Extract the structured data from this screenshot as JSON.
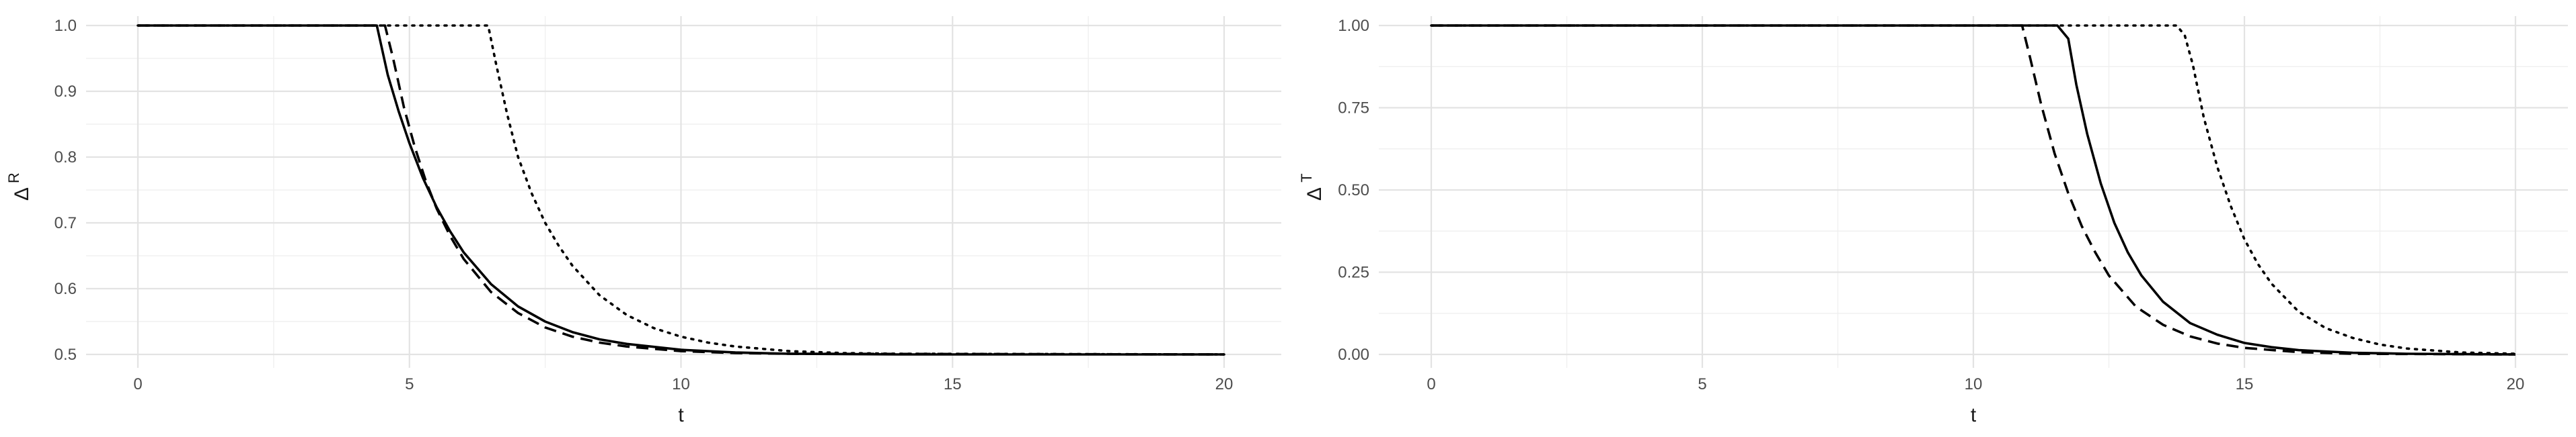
{
  "chart_data": [
    {
      "type": "line",
      "xlabel": "t",
      "ylabel": "Δ",
      "ylabel_sup": "R",
      "xlim": [
        0,
        20
      ],
      "ylim": [
        0.5,
        1.0
      ],
      "xticks": [
        "0",
        "5",
        "10",
        "15",
        "20"
      ],
      "yticks": [
        "0.5",
        "0.6",
        "0.7",
        "0.8",
        "0.9",
        "1.0"
      ],
      "grid": true,
      "series": [
        {
          "style": "solid",
          "x": [
            0,
            4.4,
            4.6,
            4.8,
            5.0,
            5.25,
            5.5,
            5.75,
            6.0,
            6.5,
            7.0,
            7.5,
            8.0,
            8.5,
            9.0,
            10.0,
            11.0,
            12.0,
            14.0,
            20.0
          ],
          "y": [
            1.0,
            1.0,
            0.925,
            0.87,
            0.821,
            0.768,
            0.724,
            0.687,
            0.655,
            0.607,
            0.573,
            0.55,
            0.534,
            0.523,
            0.516,
            0.507,
            0.503,
            0.501,
            0.5,
            0.5
          ]
        },
        {
          "style": "dashed",
          "x": [
            0,
            4.55,
            4.7,
            4.9,
            5.1,
            5.3,
            5.5,
            5.75,
            6.0,
            6.5,
            7.0,
            7.5,
            8.0,
            8.5,
            9.0,
            10.0,
            11.0,
            12.0,
            20.0
          ],
          "y": [
            1.0,
            1.0,
            0.95,
            0.875,
            0.815,
            0.764,
            0.722,
            0.68,
            0.645,
            0.595,
            0.563,
            0.541,
            0.527,
            0.518,
            0.512,
            0.505,
            0.502,
            0.501,
            0.5
          ]
        },
        {
          "style": "dotted",
          "x": [
            0,
            6.45,
            6.6,
            6.8,
            7.0,
            7.25,
            7.5,
            7.75,
            8.0,
            8.5,
            9.0,
            9.5,
            10.0,
            10.5,
            11.0,
            12.0,
            13.0,
            14.0,
            20.0
          ],
          "y": [
            1.0,
            1.0,
            0.94,
            0.865,
            0.8,
            0.745,
            0.7,
            0.665,
            0.635,
            0.59,
            0.56,
            0.54,
            0.527,
            0.518,
            0.512,
            0.505,
            0.502,
            0.501,
            0.5
          ]
        }
      ]
    },
    {
      "type": "line",
      "xlabel": "t",
      "ylabel": "Δ",
      "ylabel_sup": "T",
      "xlim": [
        0,
        20
      ],
      "ylim": [
        0.0,
        1.0
      ],
      "xticks": [
        "0",
        "5",
        "10",
        "15",
        "20"
      ],
      "yticks": [
        "0.00",
        "0.25",
        "0.50",
        "0.75",
        "1.00"
      ],
      "grid": true,
      "series": [
        {
          "style": "solid",
          "x": [
            0,
            11.55,
            11.75,
            11.9,
            12.1,
            12.35,
            12.6,
            12.85,
            13.1,
            13.5,
            14.0,
            14.5,
            15.0,
            15.5,
            16.0,
            17.0,
            18.0,
            20.0
          ],
          "y": [
            1.0,
            1.0,
            0.96,
            0.82,
            0.67,
            0.52,
            0.4,
            0.31,
            0.24,
            0.16,
            0.095,
            0.06,
            0.035,
            0.022,
            0.013,
            0.005,
            0.002,
            0.0
          ]
        },
        {
          "style": "dashed",
          "x": [
            0,
            10.9,
            11.05,
            11.25,
            11.5,
            11.75,
            12.0,
            12.25,
            12.5,
            13.0,
            13.5,
            14.0,
            14.5,
            15.0,
            16.0,
            17.0,
            20.0
          ],
          "y": [
            1.0,
            1.0,
            0.9,
            0.76,
            0.61,
            0.49,
            0.39,
            0.31,
            0.24,
            0.145,
            0.09,
            0.055,
            0.033,
            0.02,
            0.007,
            0.002,
            0.0
          ]
        },
        {
          "style": "dotted",
          "x": [
            0,
            13.75,
            13.9,
            14.05,
            14.25,
            14.5,
            14.75,
            15.0,
            15.25,
            15.5,
            16.0,
            16.5,
            17.0,
            17.5,
            18.0,
            19.0,
            20.0
          ],
          "y": [
            1.0,
            1.0,
            0.97,
            0.88,
            0.72,
            0.57,
            0.45,
            0.35,
            0.275,
            0.215,
            0.13,
            0.08,
            0.05,
            0.03,
            0.018,
            0.006,
            0.002
          ]
        }
      ]
    }
  ]
}
